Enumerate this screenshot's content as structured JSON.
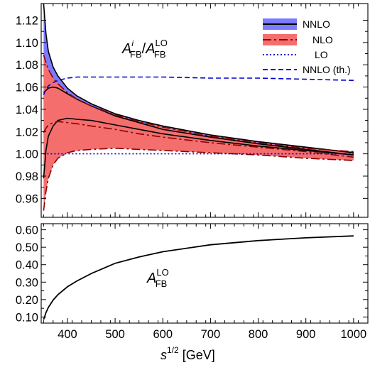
{
  "chart_data": [
    {
      "type": "line",
      "panel": "top",
      "annotation": {
        "main": "A",
        "sup_i": "i",
        "sub_fb": "FB",
        "slash": "/",
        "sup_lo": "LO"
      },
      "xlim": [
        345,
        1030
      ],
      "ylim": [
        0.943,
        1.135
      ],
      "yticks": [
        0.96,
        0.98,
        1.0,
        1.02,
        1.04,
        1.06,
        1.08,
        1.1,
        1.12
      ],
      "ytick_labels": [
        "0.96",
        "0.98",
        "1.00",
        "1.02",
        "1.04",
        "1.06",
        "1.08",
        "1.10",
        "1.12"
      ],
      "x": [
        350,
        355,
        360,
        370,
        380,
        400,
        420,
        450,
        500,
        550,
        600,
        700,
        800,
        900,
        1000
      ],
      "bands": [
        {
          "name": "NNLO",
          "color": "#7b7bff",
          "edge": "#000000",
          "upper": [
            1.135,
            1.108,
            1.092,
            1.078,
            1.07,
            1.059,
            1.052,
            1.045,
            1.036,
            1.03,
            1.025,
            1.017,
            1.011,
            1.006,
            1.001
          ],
          "lower": [
            0.978,
            1.003,
            1.016,
            1.025,
            1.03,
            1.032,
            1.031,
            1.03,
            1.026,
            1.022,
            1.018,
            1.012,
            1.007,
            1.003,
            0.999
          ],
          "central": [
            1.055,
            1.057,
            1.059,
            1.06,
            1.059,
            1.054,
            1.049,
            1.043,
            1.034,
            1.028,
            1.022,
            1.015,
            1.009,
            1.004,
            0.999
          ]
        },
        {
          "name": "NLO",
          "color": "#f46e6e",
          "edge": "#8b0000",
          "upper": [
            1.089,
            1.082,
            1.076,
            1.068,
            1.063,
            1.055,
            1.049,
            1.043,
            1.035,
            1.029,
            1.024,
            1.016,
            1.01,
            1.005,
            1.002
          ],
          "lower": [
            0.949,
            0.966,
            0.978,
            0.99,
            0.996,
            1.001,
            1.003,
            1.004,
            1.005,
            1.004,
            1.003,
            1.001,
            0.999,
            0.996,
            0.994
          ],
          "central": [
            1.019,
            1.023,
            1.026,
            1.028,
            1.029,
            1.028,
            1.027,
            1.025,
            1.022,
            1.018,
            1.015,
            1.01,
            1.006,
            1.002,
            0.997
          ]
        }
      ],
      "lines": [
        {
          "name": "LO",
          "color": "#0000cc",
          "style": "dotted",
          "values": [
            1.0,
            1.0,
            1.0,
            1.0,
            1.0,
            1.0,
            1.0,
            1.0,
            1.0,
            1.0,
            1.0,
            1.0,
            1.0,
            1.0,
            1.0
          ]
        },
        {
          "name": "NNLO (th.)",
          "color": "#0000cc",
          "style": "dashed",
          "values": [
            1.053,
            1.058,
            1.061,
            1.064,
            1.066,
            1.068,
            1.069,
            1.069,
            1.069,
            1.069,
            1.069,
            1.068,
            1.068,
            1.067,
            1.066
          ]
        }
      ],
      "legend": {
        "placement": "top-right",
        "entries": [
          "NNLO",
          "NLO",
          "LO",
          "NNLO (th.)"
        ]
      }
    },
    {
      "type": "line",
      "panel": "bottom",
      "annotation": {
        "main": "A",
        "sub_fb": "FB",
        "sup_lo": "LO"
      },
      "xlim": [
        345,
        1030
      ],
      "ylim": [
        0.065,
        0.635
      ],
      "yticks": [
        0.1,
        0.2,
        0.3,
        0.4,
        0.5,
        0.6
      ],
      "ytick_labels": [
        "0.10",
        "0.20",
        "0.30",
        "0.40",
        "0.50",
        "0.60"
      ],
      "xticks": [
        400,
        500,
        600,
        700,
        800,
        900,
        1000
      ],
      "xtick_labels": [
        "400",
        "500",
        "600",
        "700",
        "800",
        "900",
        "1000"
      ],
      "x": [
        350,
        355,
        360,
        370,
        380,
        400,
        420,
        450,
        500,
        550,
        600,
        700,
        800,
        900,
        1000
      ],
      "series": [
        {
          "color": "#000000",
          "values": [
            0.085,
            0.125,
            0.155,
            0.197,
            0.228,
            0.273,
            0.307,
            0.349,
            0.408,
            0.444,
            0.474,
            0.514,
            0.538,
            0.554,
            0.565
          ]
        }
      ],
      "xlabel": {
        "main": "s",
        "sup": "1/2",
        "unit": " [GeV]"
      }
    }
  ]
}
